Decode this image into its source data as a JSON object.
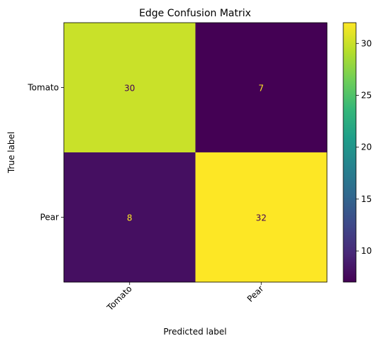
{
  "chart_data": {
    "type": "heatmap",
    "title": "Edge Confusion Matrix",
    "xlabel": "Predicted label",
    "ylabel": "True label",
    "x_categories": [
      "Tomato",
      "Pear"
    ],
    "y_categories": [
      "Tomato",
      "Pear"
    ],
    "values": [
      [
        30,
        7
      ],
      [
        8,
        32
      ]
    ],
    "colormap": "viridis",
    "colorbar": {
      "vmin": 7,
      "vmax": 32,
      "ticks": [
        10,
        15,
        20,
        25,
        30
      ],
      "tick_labels": [
        "10",
        "15",
        "20",
        "25",
        "30"
      ]
    },
    "text_colors": {
      "on_dark": "#fde725",
      "on_light": "#440154"
    }
  }
}
